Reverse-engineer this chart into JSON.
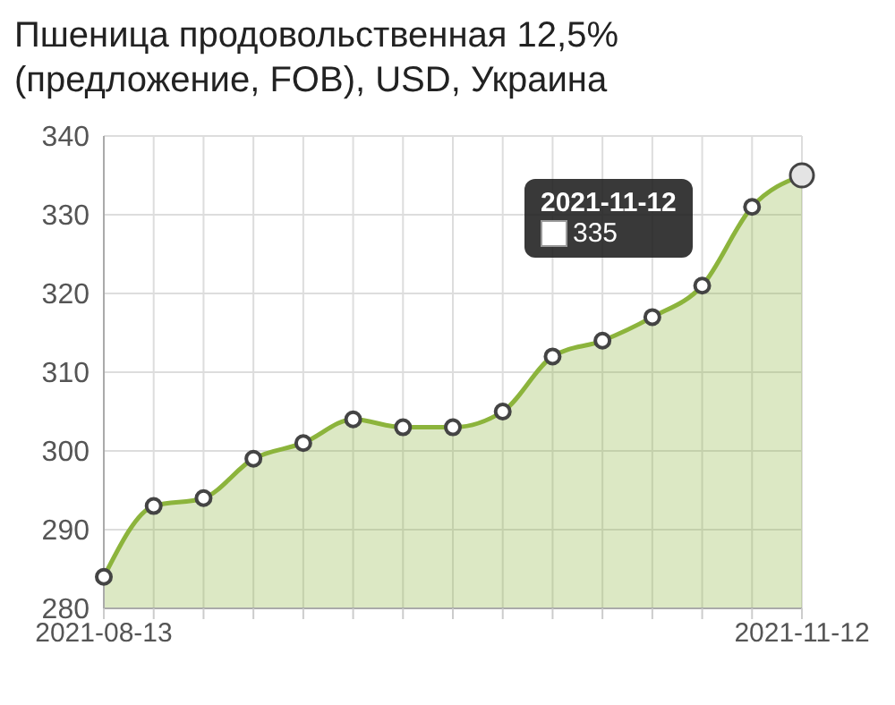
{
  "chart_data": {
    "type": "area",
    "title": "Пшеница продовольственная 12,5% (предложение, FOB), USD, Украина",
    "categories": [
      "2021-08-13",
      null,
      null,
      null,
      null,
      null,
      null,
      null,
      null,
      null,
      null,
      null,
      null,
      null,
      "2021-11-12"
    ],
    "series": [
      {
        "color": "#8cb43c",
        "values": [
          284,
          293,
          294,
          299,
          301,
          304,
          303,
          303,
          305,
          312,
          314,
          317,
          321,
          331,
          335
        ]
      }
    ],
    "ylim": [
      280,
      340
    ],
    "yticks": [
      280,
      290,
      300,
      310,
      320,
      330,
      340
    ],
    "grid": true,
    "marker": "circle",
    "annotations": [
      "2021-11-12",
      "335"
    ]
  }
}
